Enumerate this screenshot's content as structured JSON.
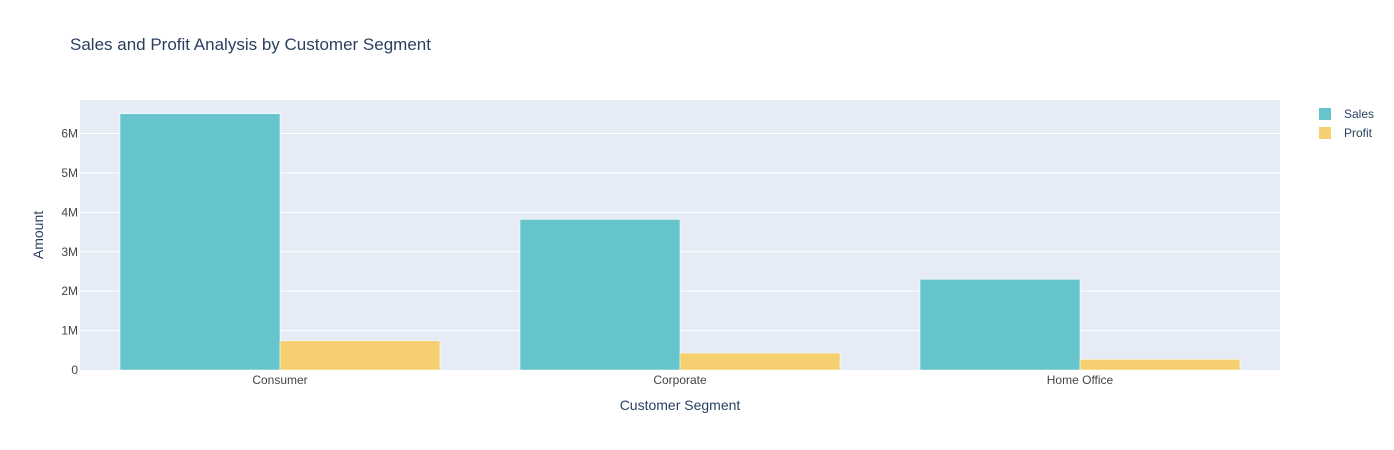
{
  "chart_data": {
    "type": "bar",
    "title": "Sales and Profit Analysis by Customer Segment",
    "xlabel": "Customer Segment",
    "ylabel": "Amount",
    "categories": [
      "Consumer",
      "Corporate",
      "Home Office"
    ],
    "series": [
      {
        "name": "Sales",
        "color": "#66c5cc",
        "values": [
          6500000,
          3820000,
          2300000
        ]
      },
      {
        "name": "Profit",
        "color": "#f6cf71",
        "values": [
          740000,
          430000,
          270000
        ]
      }
    ],
    "ylim": [
      0,
      6850000
    ],
    "yticks": [
      0,
      1000000,
      2000000,
      3000000,
      4000000,
      5000000,
      6000000
    ],
    "ytick_labels": [
      "0",
      "1M",
      "2M",
      "3M",
      "4M",
      "5M",
      "6M"
    ],
    "grid": true,
    "legend_position": "top-right",
    "plot_bg": "#e5ecf6"
  }
}
